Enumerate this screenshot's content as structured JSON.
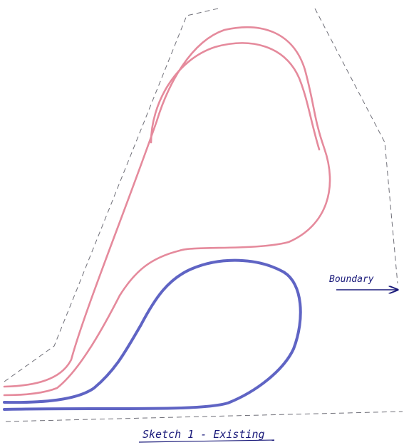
{
  "sketch": {
    "boundary_label": "Boundary",
    "caption": "Sketch 1 - Existing"
  },
  "colors": {
    "existing_pink_track": "#e58a9c",
    "existing_blue_track": "#5f64c4",
    "boundary_dashes": "#6f6f78",
    "annotation_ink": "#1a1a7a"
  }
}
